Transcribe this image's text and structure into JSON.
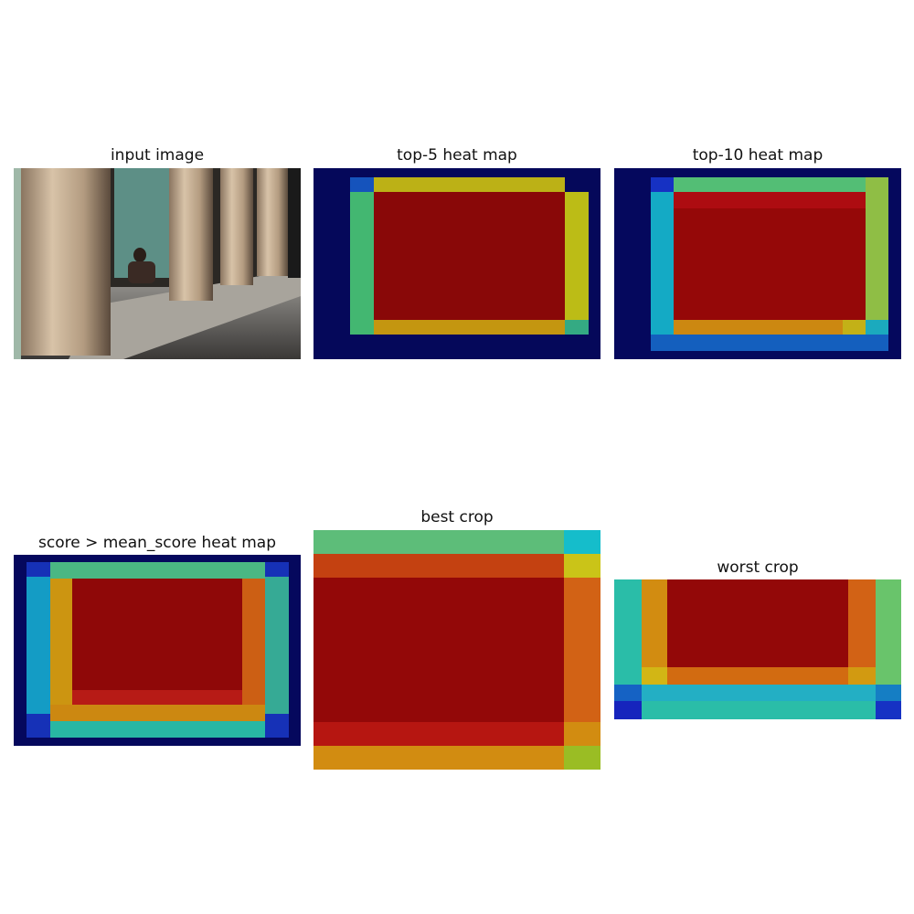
{
  "figure": {
    "panels": [
      {
        "id": "input",
        "title": "input image"
      },
      {
        "id": "top5",
        "title": "top-5 heat map"
      },
      {
        "id": "top10",
        "title": "top-10 heat map"
      },
      {
        "id": "mean",
        "title": "score > mean_score heat map"
      },
      {
        "id": "best",
        "title": "best crop"
      },
      {
        "id": "worst",
        "title": "worst crop"
      }
    ]
  },
  "colors": {
    "dark_blue": "#00007f",
    "blue": "#0040ff",
    "cyan": "#18d8e8",
    "green": "#6be08a",
    "yellow": "#e2e21c",
    "orange": "#ff8a18",
    "red_orange": "#f04a14",
    "red": "#b00000",
    "stone": "#c9b59c",
    "shadow": "#2a2a2a"
  }
}
